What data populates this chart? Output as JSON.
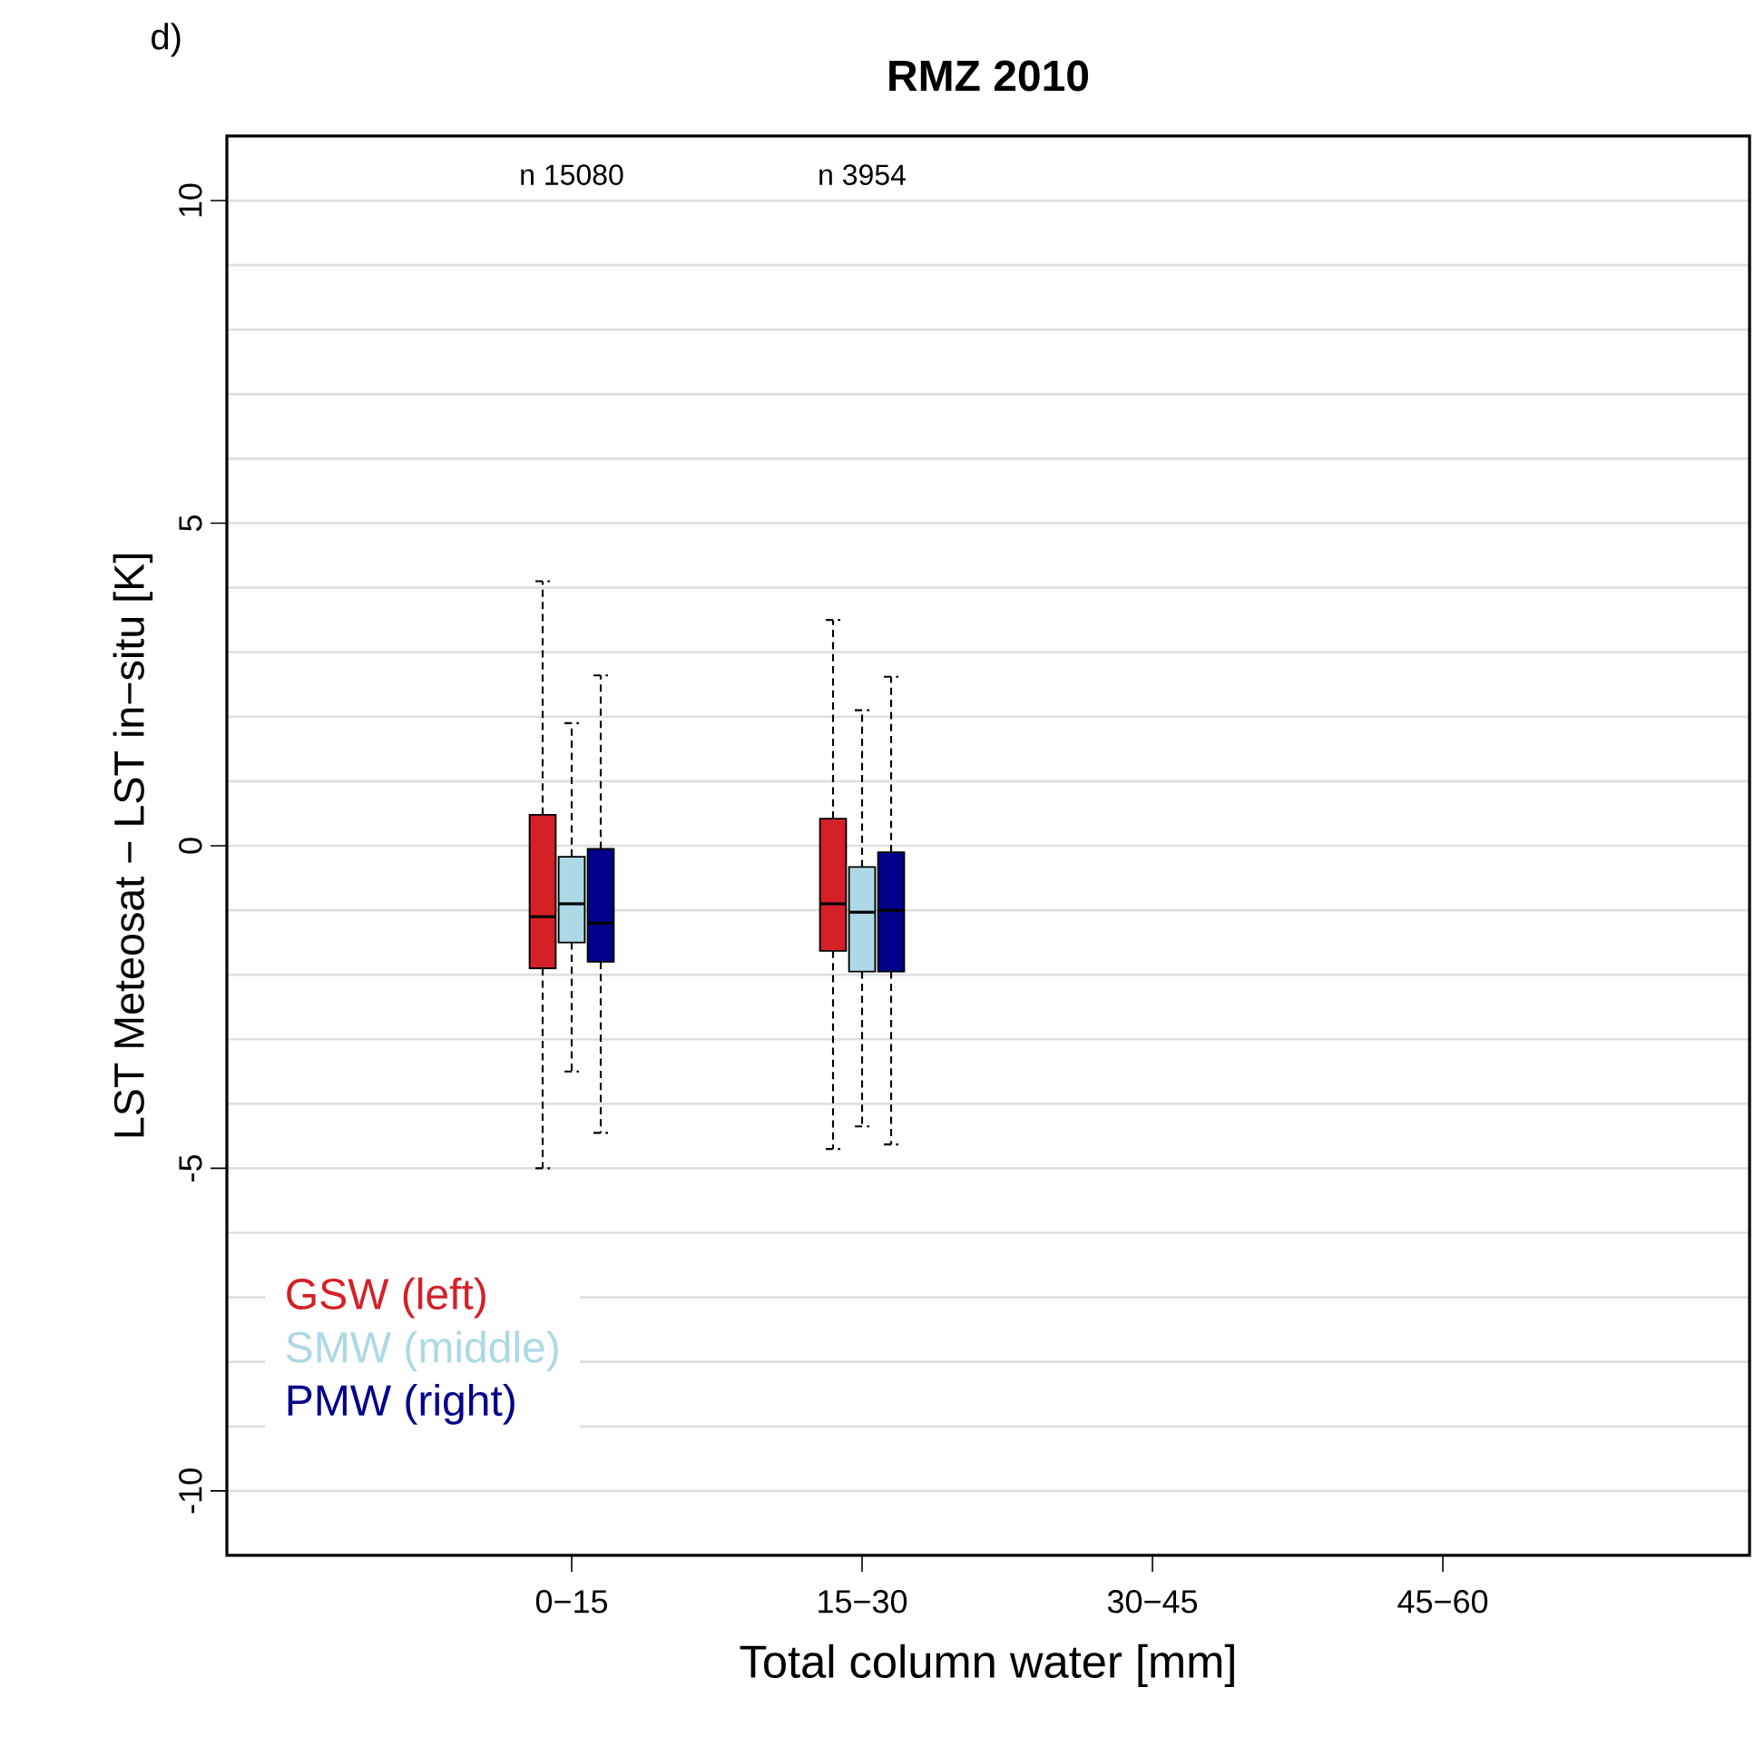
{
  "chart_data": {
    "type": "box",
    "title": "RMZ 2010",
    "xlabel": "Total column water [mm]",
    "ylabel": "LST Meteosat − LST in−situ [K]",
    "categories": [
      "0−15",
      "15−30",
      "30−45",
      "45−60"
    ],
    "series": [
      {
        "name": "GSW (left)",
        "color": "#d42027",
        "boxes": [
          {
            "low": -5.0,
            "q1": -1.9,
            "median": -1.1,
            "q3": 0.48,
            "high": 4.1
          },
          {
            "low": -4.7,
            "q1": -1.63,
            "median": -0.9,
            "q3": 0.42,
            "high": 3.5
          },
          null,
          null
        ]
      },
      {
        "name": "SMW (middle)",
        "color": "#add8e6",
        "boxes": [
          {
            "low": -3.5,
            "q1": -1.5,
            "median": -0.9,
            "q3": -0.17,
            "high": 1.9
          },
          {
            "low": -4.35,
            "q1": -1.95,
            "median": -1.03,
            "q3": -0.33,
            "high": 2.1
          },
          null,
          null
        ]
      },
      {
        "name": "PMW (right)",
        "color": "#00008b",
        "boxes": [
          {
            "low": -4.45,
            "q1": -1.8,
            "median": -1.2,
            "q3": -0.05,
            "high": 2.64
          },
          {
            "low": -4.63,
            "q1": -1.95,
            "median": -1.0,
            "q3": -0.1,
            "high": 2.62
          },
          null,
          null
        ]
      }
    ],
    "ylim": [
      -11,
      11
    ],
    "yticks": [
      -10,
      {
        "value": -9,
        "label": null
      },
      {
        "value": -8,
        "label": null
      },
      {
        "value": -7,
        "label": null
      },
      {
        "value": -6,
        "label": null
      },
      -5,
      {
        "value": -4,
        "label": null
      },
      {
        "value": -3,
        "label": null
      },
      {
        "value": -2,
        "label": null
      },
      {
        "value": -1,
        "label": null
      },
      0,
      {
        "value": 1,
        "label": null
      },
      {
        "value": 2,
        "label": null
      },
      {
        "value": 3,
        "label": null
      },
      {
        "value": 4,
        "label": null
      },
      5,
      {
        "value": 6,
        "label": null
      },
      {
        "value": 7,
        "label": null
      },
      {
        "value": 8,
        "label": null
      },
      {
        "value": 9,
        "label": null
      },
      10
    ],
    "grid": "y",
    "annotations": [
      "d)",
      "n 15080",
      "n 3954"
    ]
  }
}
